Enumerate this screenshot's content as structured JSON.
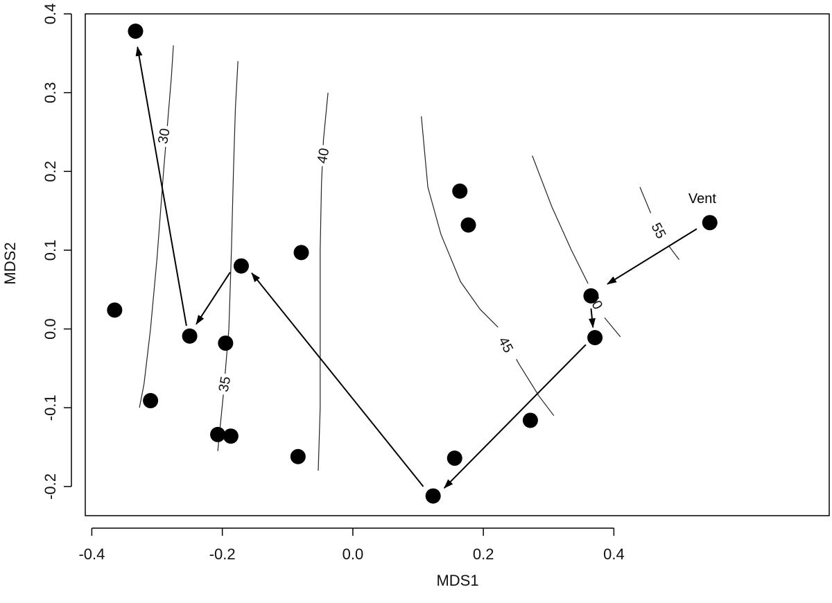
{
  "chart_data": {
    "type": "scatter",
    "xlabel": "MDS1",
    "ylabel": "MDS2",
    "xlim": [
      -0.41,
      0.73
    ],
    "ylim": [
      -0.237,
      0.4
    ],
    "x_ticks": [
      -0.4,
      -0.2,
      0.0,
      0.2,
      0.4
    ],
    "x_tick_labels": [
      "-0.4",
      "-0.2",
      "0.0",
      "0.2",
      "0.4"
    ],
    "y_ticks": [
      -0.2,
      -0.1,
      0.0,
      0.1,
      0.2,
      0.3,
      0.4
    ],
    "y_tick_labels": [
      "-0.2",
      "-0.1",
      "0.0",
      "0.1",
      "0.2",
      "0.3",
      "0.4"
    ],
    "grid": false,
    "points": [
      {
        "x": -0.333,
        "y": 0.378
      },
      {
        "x": -0.365,
        "y": 0.024
      },
      {
        "x": -0.31,
        "y": -0.091
      },
      {
        "x": -0.25,
        "y": -0.009
      },
      {
        "x": -0.171,
        "y": 0.08
      },
      {
        "x": -0.195,
        "y": -0.018
      },
      {
        "x": -0.207,
        "y": -0.134
      },
      {
        "x": -0.187,
        "y": -0.136
      },
      {
        "x": -0.079,
        "y": 0.097
      },
      {
        "x": -0.084,
        "y": -0.162
      },
      {
        "x": 0.123,
        "y": -0.212
      },
      {
        "x": 0.156,
        "y": -0.164
      },
      {
        "x": 0.164,
        "y": 0.175
      },
      {
        "x": 0.177,
        "y": 0.132
      },
      {
        "x": 0.272,
        "y": -0.116
      },
      {
        "x": 0.365,
        "y": 0.042
      },
      {
        "x": 0.371,
        "y": -0.011
      },
      {
        "x": 0.547,
        "y": 0.135
      }
    ],
    "arrows": [
      {
        "from": [
          0.527,
          0.127
        ],
        "to": [
          0.39,
          0.057
        ]
      },
      {
        "from": [
          0.365,
          0.026
        ],
        "to": [
          0.368,
          0.002
        ]
      },
      {
        "from": [
          0.357,
          -0.02
        ],
        "to": [
          0.14,
          -0.202
        ]
      },
      {
        "from": [
          0.108,
          -0.2
        ],
        "to": [
          -0.155,
          0.071
        ]
      },
      {
        "from": [
          -0.188,
          0.072
        ],
        "to": [
          -0.24,
          0.006
        ]
      },
      {
        "from": [
          -0.255,
          0.004
        ],
        "to": [
          -0.33,
          0.358
        ]
      }
    ],
    "contours": [
      {
        "level": "30",
        "path": [
          [
            -0.327,
            -0.1
          ],
          [
            -0.32,
            -0.07
          ],
          [
            -0.31,
            0.0
          ],
          [
            -0.3,
            0.09
          ],
          [
            -0.29,
            0.2
          ],
          [
            -0.283,
            0.27
          ],
          [
            -0.278,
            0.32
          ],
          [
            -0.275,
            0.36
          ]
        ],
        "label_at": [
          -0.29,
          0.245
        ]
      },
      {
        "level": "35",
        "path": [
          [
            -0.207,
            -0.155
          ],
          [
            -0.198,
            -0.08
          ],
          [
            -0.19,
            0.0
          ],
          [
            -0.186,
            0.1
          ],
          [
            -0.183,
            0.2
          ],
          [
            -0.18,
            0.28
          ],
          [
            -0.176,
            0.34
          ]
        ],
        "label_at": [
          -0.197,
          -0.07
        ]
      },
      {
        "level": "40",
        "path": [
          [
            -0.053,
            -0.18
          ],
          [
            -0.05,
            -0.1
          ],
          [
            -0.05,
            0.0
          ],
          [
            -0.05,
            0.1
          ],
          [
            -0.048,
            0.185
          ],
          [
            -0.045,
            0.24
          ],
          [
            -0.038,
            0.3
          ]
        ],
        "label_at": [
          -0.046,
          0.22
        ]
      },
      {
        "level": "45",
        "path": [
          [
            0.105,
            0.27
          ],
          [
            0.115,
            0.18
          ],
          [
            0.135,
            0.12
          ],
          [
            0.165,
            0.06
          ],
          [
            0.195,
            0.025
          ],
          [
            0.225,
            0.0
          ],
          [
            0.255,
            -0.045
          ],
          [
            0.285,
            -0.085
          ],
          [
            0.308,
            -0.11
          ]
        ],
        "label_at": [
          0.235,
          -0.02
        ]
      },
      {
        "level": "50",
        "path": [
          [
            0.275,
            0.22
          ],
          [
            0.305,
            0.155
          ],
          [
            0.335,
            0.1
          ],
          [
            0.365,
            0.05
          ],
          [
            0.385,
            0.015
          ],
          [
            0.41,
            -0.01
          ]
        ],
        "label_at": [
          0.372,
          0.035
        ]
      },
      {
        "level": "55",
        "path": [
          [
            0.44,
            0.18
          ],
          [
            0.46,
            0.14
          ],
          [
            0.48,
            0.11
          ],
          [
            0.5,
            0.088
          ]
        ],
        "label_at": [
          0.469,
          0.125
        ]
      }
    ],
    "annotations": [
      {
        "text": "Vent",
        "x": 0.527,
        "y": 0.16
      }
    ]
  }
}
